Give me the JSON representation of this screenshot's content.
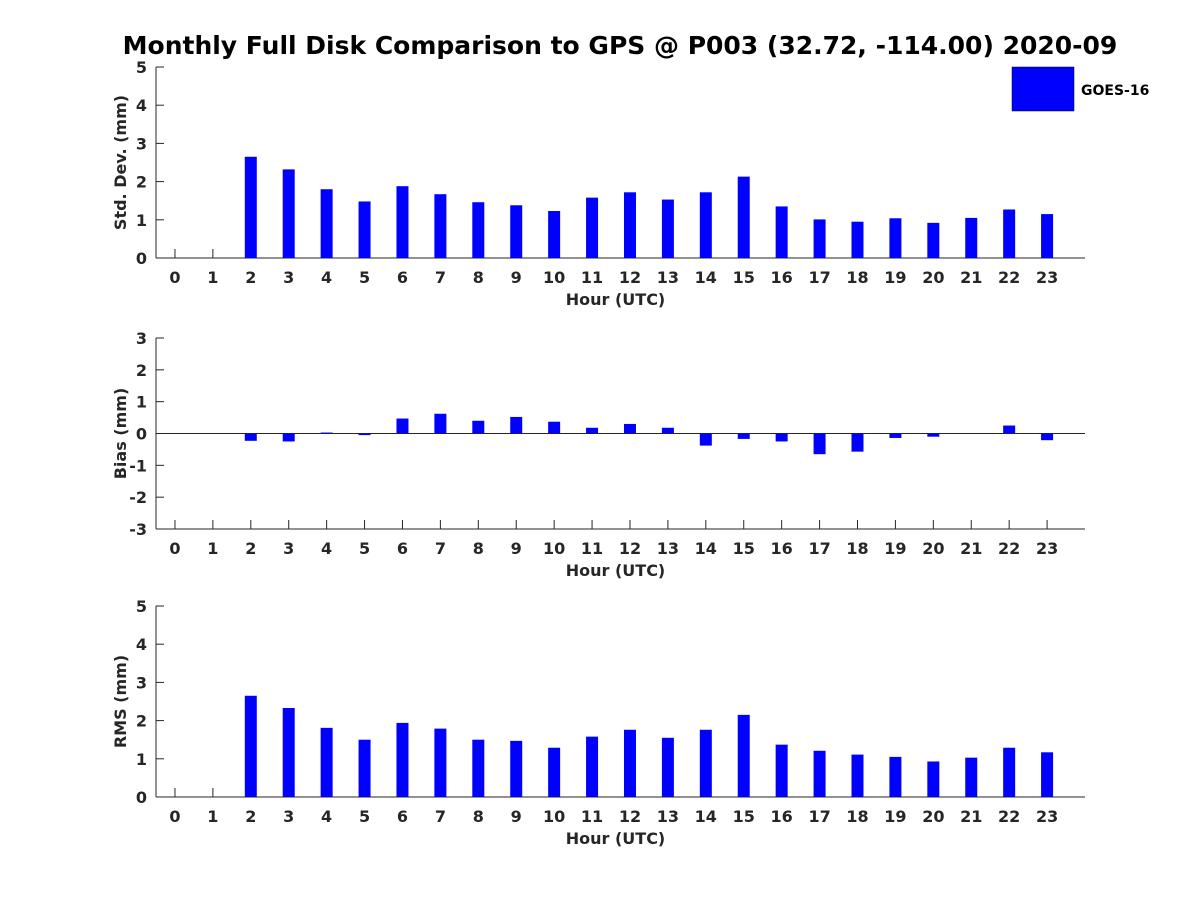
{
  "chart_data": {
    "title": "Monthly Full Disk Comparison to GPS @ P003 (32.72, -114.00) 2020-09",
    "type": "bar",
    "bar_color": "#0000ff",
    "legend": {
      "label": "GOES-16",
      "placement": "top-right"
    },
    "categories": [
      "0",
      "1",
      "2",
      "3",
      "4",
      "5",
      "6",
      "7",
      "8",
      "9",
      "10",
      "11",
      "12",
      "13",
      "14",
      "15",
      "16",
      "17",
      "18",
      "19",
      "20",
      "21",
      "22",
      "23"
    ],
    "panels": [
      {
        "name": "std-dev",
        "ylabel": "Std. Dev. (mm)",
        "xlabel": "Hour (UTC)",
        "ylim": [
          0,
          5
        ],
        "yticks": [
          "0",
          "1",
          "2",
          "3",
          "4",
          "5"
        ],
        "values": [
          null,
          null,
          2.65,
          2.32,
          1.8,
          1.48,
          1.88,
          1.67,
          1.46,
          1.38,
          1.23,
          1.58,
          1.72,
          1.53,
          1.72,
          2.13,
          1.35,
          1.01,
          0.95,
          1.04,
          0.92,
          1.05,
          1.27,
          1.15
        ]
      },
      {
        "name": "bias",
        "ylabel": "Bias (mm)",
        "xlabel": "Hour (UTC)",
        "ylim": [
          -3,
          3
        ],
        "yticks": [
          "-3",
          "-2",
          "-1",
          "0",
          "1",
          "2",
          "3"
        ],
        "values": [
          null,
          null,
          -0.23,
          -0.25,
          0.03,
          -0.05,
          0.47,
          0.62,
          0.4,
          0.52,
          0.37,
          0.18,
          0.3,
          0.18,
          -0.38,
          -0.17,
          -0.25,
          -0.65,
          -0.57,
          -0.14,
          -0.1,
          0.0,
          0.25,
          -0.21
        ]
      },
      {
        "name": "rms",
        "ylabel": "RMS (mm)",
        "xlabel": "Hour (UTC)",
        "ylim": [
          0,
          5
        ],
        "yticks": [
          "0",
          "1",
          "2",
          "3",
          "4",
          "5"
        ],
        "values": [
          null,
          null,
          2.65,
          2.33,
          1.81,
          1.5,
          1.94,
          1.79,
          1.5,
          1.47,
          1.29,
          1.58,
          1.76,
          1.55,
          1.76,
          2.15,
          1.37,
          1.21,
          1.11,
          1.05,
          0.93,
          1.03,
          1.29,
          1.17
        ]
      }
    ]
  }
}
